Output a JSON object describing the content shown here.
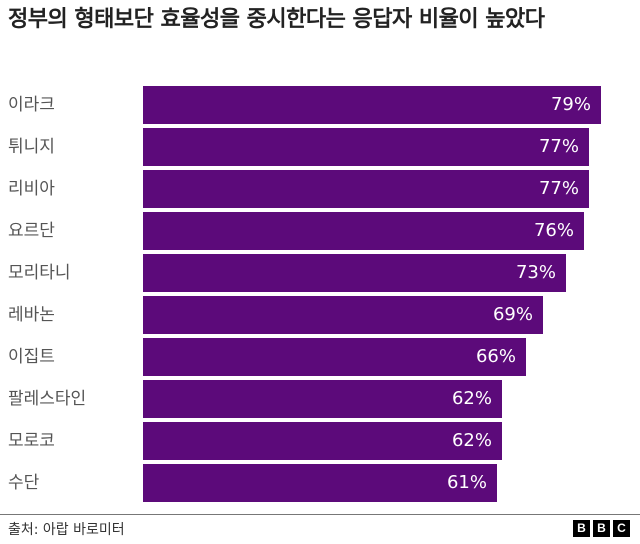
{
  "title": "정부의 형태보단 효율성을 중시한다는 응답자 비율이 높았다",
  "source": "출처: 아랍 바로미터",
  "logo": [
    "B",
    "B",
    "C"
  ],
  "bar_color": "#5c0a7a",
  "rows": [
    {
      "label": "이라크",
      "value": 79,
      "display": "79%"
    },
    {
      "label": "튀니지",
      "value": 77,
      "display": "77%"
    },
    {
      "label": "리비아",
      "value": 77,
      "display": "77%"
    },
    {
      "label": "요르단",
      "value": 76,
      "display": "76%"
    },
    {
      "label": "모리타니",
      "value": 73,
      "display": "73%"
    },
    {
      "label": "레바논",
      "value": 69,
      "display": "69%"
    },
    {
      "label": "이집트",
      "value": 66,
      "display": "66%"
    },
    {
      "label": "팔레스타인",
      "value": 62,
      "display": "62%"
    },
    {
      "label": "모로코",
      "value": 62,
      "display": "62%"
    },
    {
      "label": "수단",
      "value": 61,
      "display": "61%"
    }
  ],
  "chart_data": {
    "type": "bar",
    "orientation": "horizontal",
    "title": "정부의 형태보단 효율성을 중시한다는 응답자 비율이 높았다",
    "categories": [
      "이라크",
      "튀니지",
      "리비아",
      "요르단",
      "모리타니",
      "레바논",
      "이집트",
      "팔레스타인",
      "모로코",
      "수단"
    ],
    "values": [
      79,
      77,
      77,
      76,
      73,
      69,
      66,
      62,
      62,
      61
    ],
    "unit": "%",
    "xlabel": "",
    "ylabel": "",
    "grid": false,
    "legend": null,
    "source": "출처: 아랍 바로미터"
  }
}
